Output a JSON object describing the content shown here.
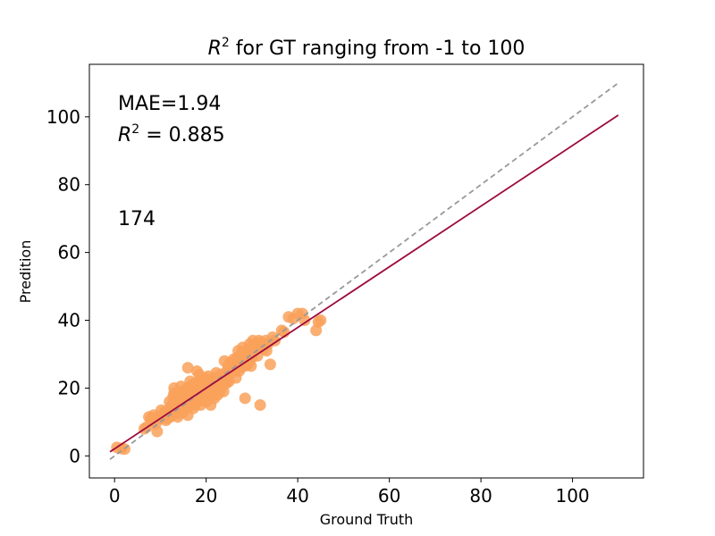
{
  "chart_data": {
    "type": "scatter",
    "title_prefix": "R",
    "title_sup": "2",
    "title_rest": " for GT ranging from -1 to 100",
    "xlabel": "Ground Truth",
    "ylabel": "Predition",
    "xlim": [
      -5.5,
      115.5
    ],
    "ylim": [
      -6.5,
      115.5
    ],
    "xticks": [
      0,
      20,
      40,
      60,
      80,
      100
    ],
    "yticks": [
      0,
      20,
      40,
      60,
      80,
      100
    ],
    "annotations": {
      "mae": "MAE=1.94",
      "r2_prefix": "R",
      "r2_sup": "2",
      "r2_rest": " = 0.885",
      "count": "174"
    },
    "colors": {
      "points": "#f9a15b",
      "fit_line": "#9c0a3e",
      "identity_line": "#999999"
    },
    "identity_line": {
      "x": [
        -1,
        110
      ],
      "y": [
        -1,
        110
      ]
    },
    "fit_line": {
      "x": [
        -1,
        110
      ],
      "y": [
        1.2,
        100.5
      ]
    },
    "points": [
      [
        0.5,
        2.5
      ],
      [
        1.5,
        2.2
      ],
      [
        2.2,
        2.0
      ],
      [
        6.5,
        8.0
      ],
      [
        7.5,
        11.5
      ],
      [
        8.0,
        10.5
      ],
      [
        8.5,
        12.0
      ],
      [
        9.0,
        9.5
      ],
      [
        9.3,
        7.2
      ],
      [
        10.0,
        11.0
      ],
      [
        10.5,
        12.0
      ],
      [
        11.0,
        13.0
      ],
      [
        11.5,
        12.5
      ],
      [
        12.0,
        14.0
      ],
      [
        12.2,
        11.5
      ],
      [
        12.5,
        15.0
      ],
      [
        12.8,
        17.5
      ],
      [
        13.0,
        20.0
      ],
      [
        13.2,
        13.0
      ],
      [
        13.5,
        16.0
      ],
      [
        13.8,
        11.5
      ],
      [
        14.0,
        18.0
      ],
      [
        14.2,
        15.0
      ],
      [
        14.5,
        17.0
      ],
      [
        14.8,
        19.0
      ],
      [
        15.0,
        16.5
      ],
      [
        15.2,
        14.0
      ],
      [
        15.5,
        18.5
      ],
      [
        15.8,
        20.0
      ],
      [
        16.0,
        12.0
      ],
      [
        16.2,
        17.0
      ],
      [
        16.5,
        15.5
      ],
      [
        16.0,
        26.0
      ],
      [
        16.8,
        19.0
      ],
      [
        17.0,
        21.0
      ],
      [
        17.2,
        14.0
      ],
      [
        17.5,
        18.0
      ],
      [
        17.8,
        20.5
      ],
      [
        18.0,
        16.0
      ],
      [
        18.0,
        25.0
      ],
      [
        18.2,
        19.0
      ],
      [
        18.5,
        22.0
      ],
      [
        18.8,
        15.0
      ],
      [
        19.0,
        18.0
      ],
      [
        19.2,
        21.0
      ],
      [
        19.5,
        17.5
      ],
      [
        19.8,
        23.0
      ],
      [
        20.0,
        16.0
      ],
      [
        20.2,
        20.0
      ],
      [
        20.5,
        18.5
      ],
      [
        20.8,
        22.5
      ],
      [
        21.0,
        15.0
      ],
      [
        21.2,
        19.5
      ],
      [
        21.5,
        21.5
      ],
      [
        21.8,
        17.0
      ],
      [
        22.0,
        23.0
      ],
      [
        22.2,
        20.0
      ],
      [
        22.5,
        18.0
      ],
      [
        22.8,
        22.0
      ],
      [
        23.0,
        19.0
      ],
      [
        23.2,
        24.0
      ],
      [
        23.5,
        21.0
      ],
      [
        23.8,
        19.0
      ],
      [
        24.0,
        28.0
      ],
      [
        24.2,
        23.0
      ],
      [
        24.5,
        25.0
      ],
      [
        25.0,
        22.0
      ],
      [
        25.2,
        27.5
      ],
      [
        25.5,
        24.5
      ],
      [
        26.0,
        28.5
      ],
      [
        26.2,
        26.0
      ],
      [
        26.5,
        23.0
      ],
      [
        27.0,
        31.0
      ],
      [
        27.2,
        25.0
      ],
      [
        27.5,
        27.0
      ],
      [
        27.8,
        28.5
      ],
      [
        28.0,
        32.0
      ],
      [
        28.2,
        30.0
      ],
      [
        28.5,
        26.5
      ],
      [
        28.5,
        17.0
      ],
      [
        29.0,
        29.5
      ],
      [
        29.2,
        31.5
      ],
      [
        29.5,
        28.0
      ],
      [
        29.8,
        26.5
      ],
      [
        30.0,
        30.5
      ],
      [
        30.2,
        34.0
      ],
      [
        30.5,
        31.0
      ],
      [
        31.0,
        33.0
      ],
      [
        31.2,
        29.5
      ],
      [
        31.5,
        34.0
      ],
      [
        31.8,
        15.0
      ],
      [
        32.0,
        32.0
      ],
      [
        32.5,
        31.5
      ],
      [
        33.0,
        34.0
      ],
      [
        33.5,
        33.0
      ],
      [
        34.0,
        27.0
      ],
      [
        34.5,
        35.0
      ],
      [
        37.0,
        36.5
      ],
      [
        38.0,
        41.0
      ],
      [
        40.0,
        42.0
      ],
      [
        41.0,
        42.0
      ],
      [
        41.5,
        40.0
      ],
      [
        44.0,
        37.0
      ],
      [
        44.5,
        39.5
      ],
      [
        45.0,
        40.0
      ],
      [
        14.5,
        14.5
      ],
      [
        15.5,
        15.5
      ],
      [
        16.5,
        16.5
      ],
      [
        17.5,
        17.5
      ],
      [
        18.5,
        18.5
      ],
      [
        19.5,
        19.5
      ],
      [
        20.5,
        20.5
      ],
      [
        21.5,
        21.5
      ],
      [
        22.5,
        22.5
      ],
      [
        11.5,
        11.0
      ],
      [
        10.8,
        12.5
      ],
      [
        13.5,
        13.5
      ],
      [
        14.0,
        12.5
      ],
      [
        15.0,
        13.0
      ],
      [
        16.0,
        14.5
      ],
      [
        17.0,
        16.0
      ],
      [
        18.0,
        17.5
      ],
      [
        19.0,
        16.5
      ],
      [
        20.0,
        19.0
      ],
      [
        21.0,
        20.0
      ],
      [
        22.0,
        21.0
      ],
      [
        23.0,
        22.5
      ],
      [
        24.0,
        23.5
      ],
      [
        26.5,
        25.5
      ],
      [
        27.5,
        26.0
      ],
      [
        30.0,
        29.0
      ],
      [
        12.0,
        16.0
      ],
      [
        13.0,
        18.5
      ],
      [
        14.5,
        20.5
      ],
      [
        16.5,
        22.0
      ],
      [
        18.5,
        24.0
      ],
      [
        20.5,
        23.5
      ],
      [
        9.5,
        11.5
      ],
      [
        8.0,
        11.0
      ],
      [
        7.0,
        8.5
      ],
      [
        12.5,
        12.0
      ],
      [
        15.5,
        17.0
      ],
      [
        17.5,
        15.0
      ],
      [
        19.5,
        18.5
      ],
      [
        21.5,
        18.0
      ],
      [
        23.5,
        20.5
      ],
      [
        25.5,
        26.0
      ],
      [
        28.0,
        27.5
      ],
      [
        29.0,
        27.0
      ],
      [
        30.5,
        32.5
      ],
      [
        32.0,
        33.5
      ],
      [
        35.0,
        34.0
      ],
      [
        36.5,
        37.0
      ],
      [
        39.0,
        40.5
      ],
      [
        13.8,
        16.5
      ],
      [
        14.8,
        18.0
      ],
      [
        16.2,
        19.5
      ],
      [
        17.8,
        21.5
      ],
      [
        19.2,
        22.5
      ],
      [
        20.8,
        21.0
      ],
      [
        22.2,
        24.5
      ],
      [
        24.8,
        26.5
      ],
      [
        26.8,
        29.0
      ],
      [
        10.2,
        13.5
      ],
      [
        11.2,
        10.5
      ],
      [
        12.8,
        13.2
      ],
      [
        18.8,
        20.8
      ],
      [
        21.8,
        22.8
      ],
      [
        24.5,
        21.5
      ],
      [
        27.8,
        30.5
      ],
      [
        29.5,
        33.0
      ],
      [
        33.2,
        31.0
      ],
      [
        15.2,
        16.2
      ],
      [
        16.8,
        17.8
      ]
    ]
  }
}
